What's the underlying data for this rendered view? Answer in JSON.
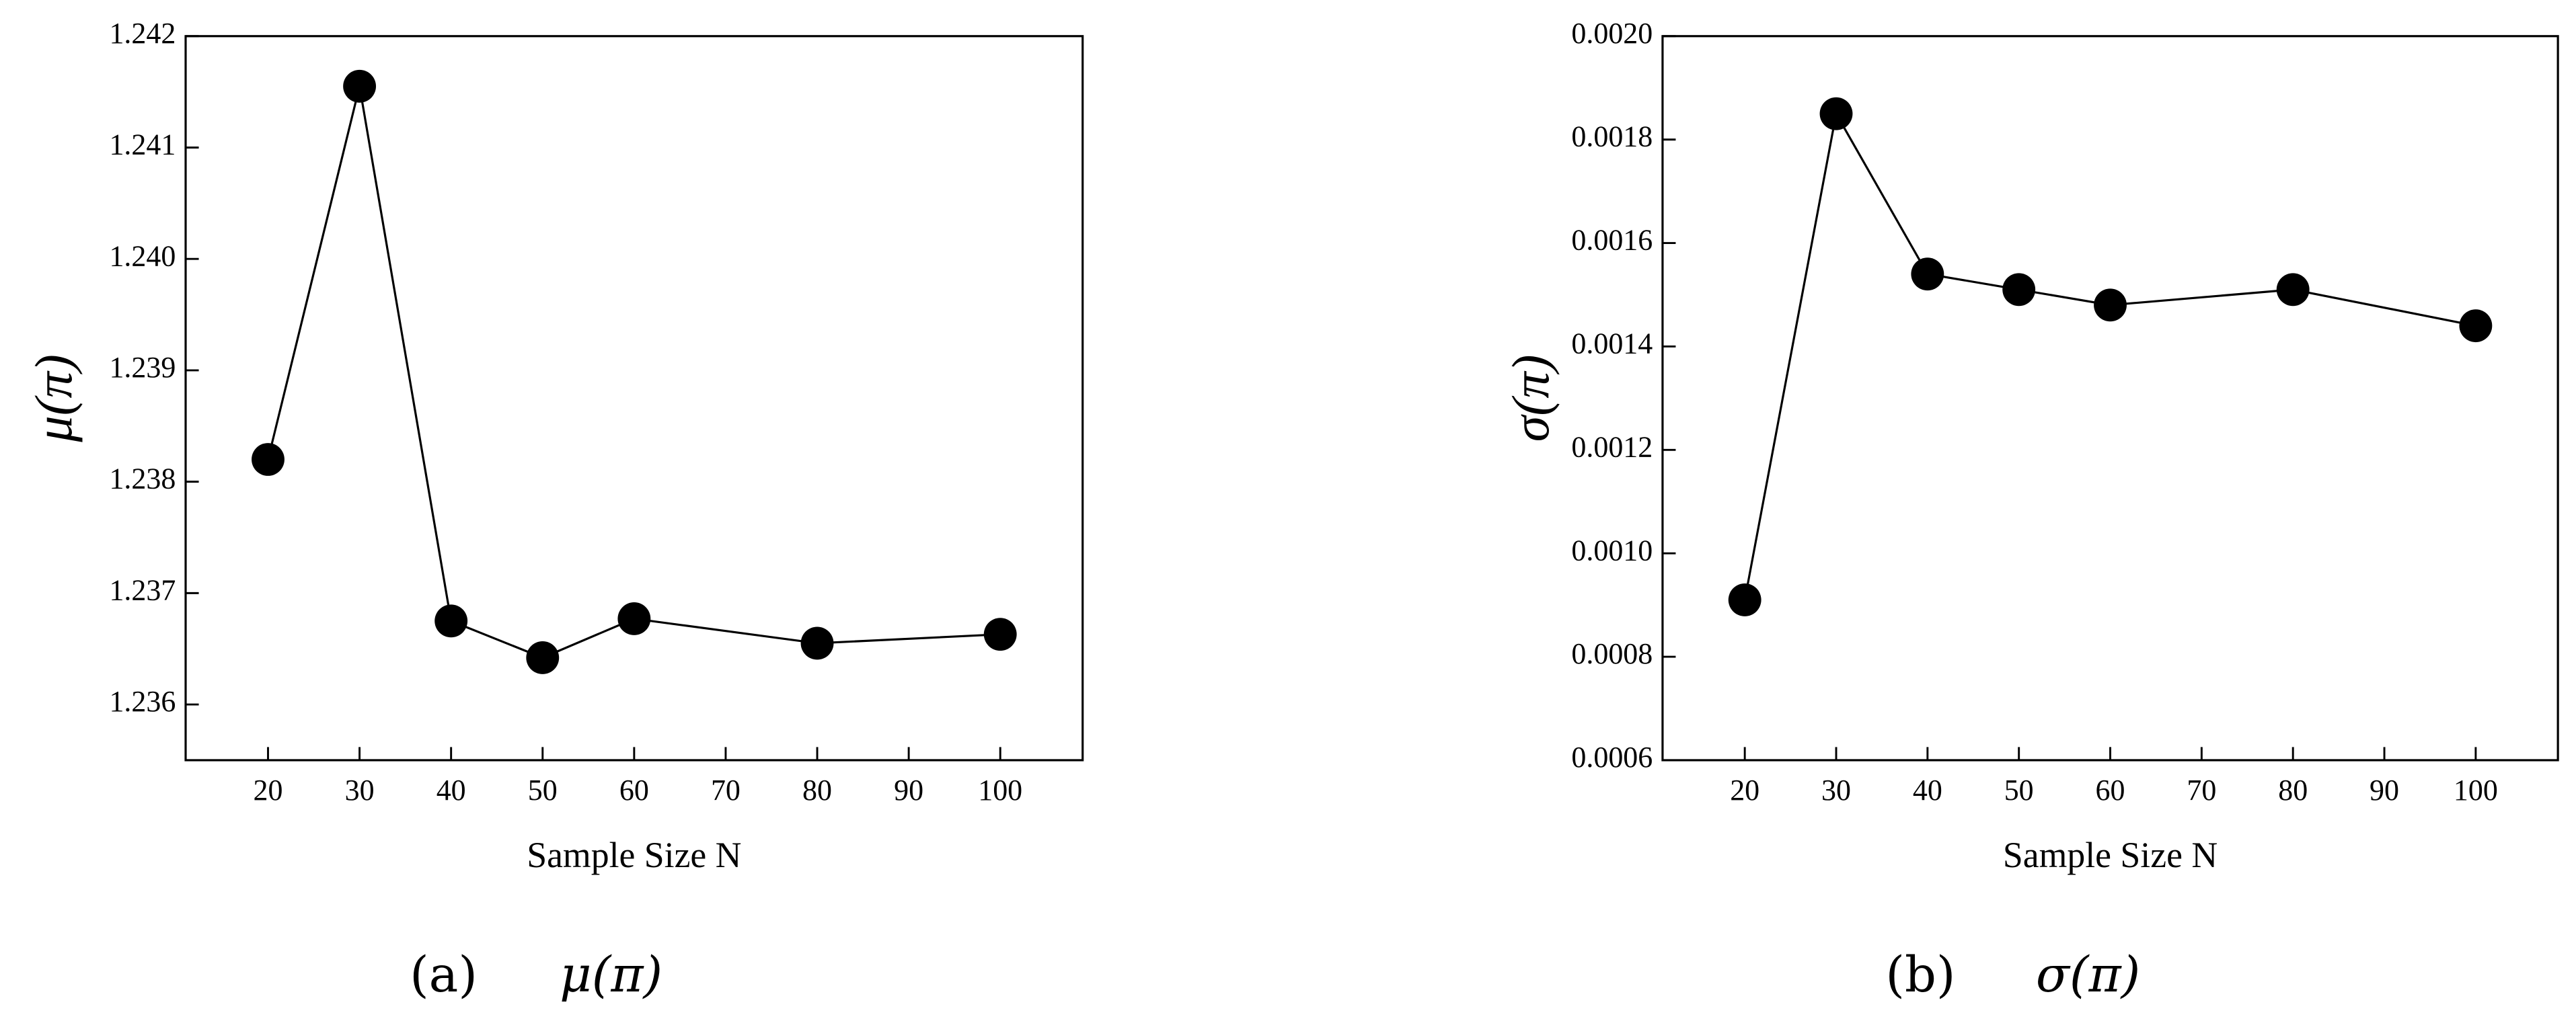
{
  "chart_data": [
    {
      "type": "line",
      "caption_label": "(a)",
      "caption": "μ(π)",
      "x_label": "Sample Size N",
      "y_label": "μ(π)",
      "x": [
        20,
        30,
        40,
        50,
        60,
        80,
        100
      ],
      "values": [
        1.2382,
        1.24155,
        1.23675,
        1.23642,
        1.23677,
        1.23655,
        1.23663
      ],
      "color": "#000000",
      "xlim": [
        11,
        109
      ],
      "xticks": [
        20,
        30,
        40,
        50,
        60,
        70,
        80,
        90,
        100
      ],
      "ylim": [
        1.2355,
        1.242
      ],
      "yticks": [
        1.236,
        1.237,
        1.238,
        1.239,
        {
          "value": 1.24,
          "label": "1.240"
        },
        1.241,
        1.242
      ]
    },
    {
      "type": "line",
      "caption_label": "(b)",
      "caption": "σ(π)",
      "x_label": "Sample Size N",
      "y_label": "σ(π)",
      "x": [
        20,
        30,
        40,
        50,
        60,
        80,
        100
      ],
      "values": [
        0.00091,
        0.00185,
        0.00154,
        0.00151,
        0.00148,
        0.00151,
        0.00144
      ],
      "color": "#000000",
      "xlim": [
        11,
        109
      ],
      "xticks": [
        20,
        30,
        40,
        50,
        60,
        70,
        80,
        90,
        100
      ],
      "ylim": [
        0.0006,
        0.002
      ],
      "yticks": [
        {
          "value": 0.0006,
          "label": "0.0006"
        },
        {
          "value": 0.0008,
          "label": "0.0008"
        },
        {
          "value": 0.001,
          "label": "0.0010"
        },
        {
          "value": 0.0012,
          "label": "0.0012"
        },
        {
          "value": 0.0014,
          "label": "0.0014"
        },
        {
          "value": 0.0016,
          "label": "0.0016"
        },
        {
          "value": 0.0018,
          "label": "0.0018"
        },
        {
          "value": 0.002,
          "label": "0.0020"
        }
      ]
    }
  ]
}
